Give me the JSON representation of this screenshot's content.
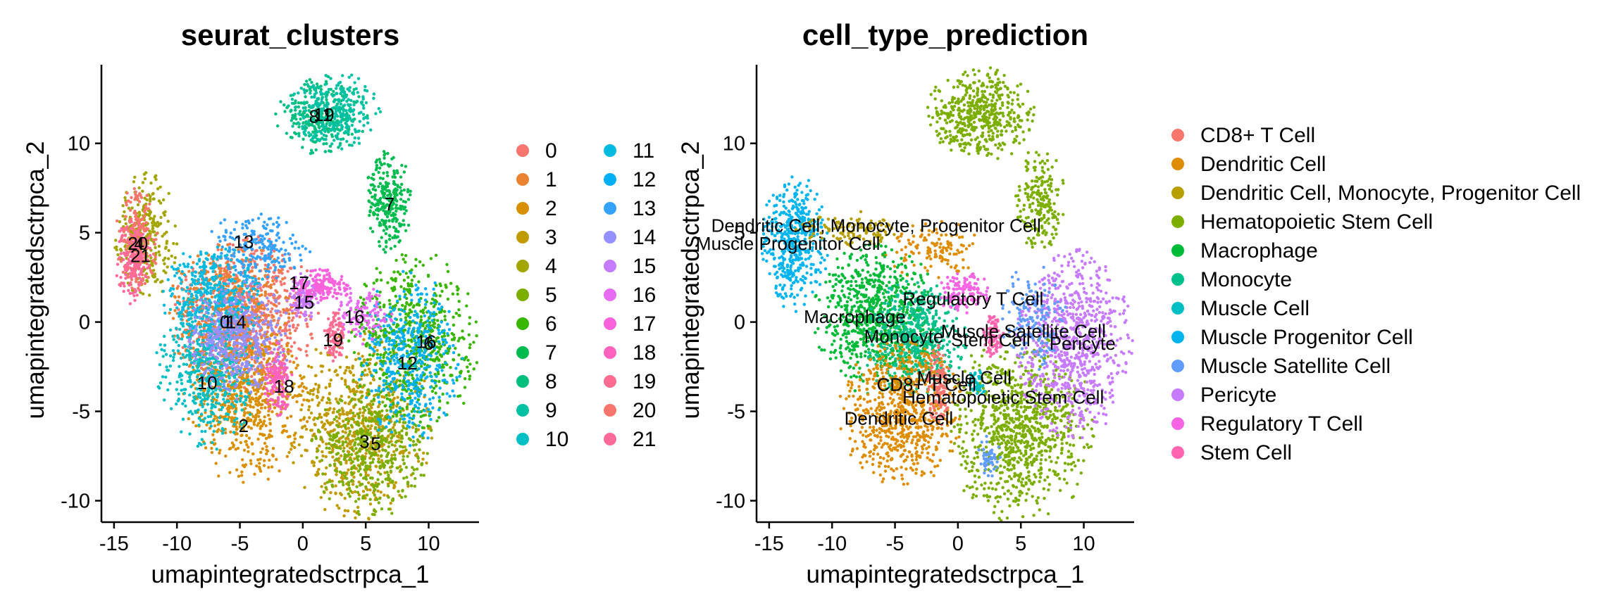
{
  "chart_data": [
    {
      "type": "scatter",
      "title": "seurat_clusters",
      "xlabel": "umapintegratedsctrpca_1",
      "ylabel": "umapintegratedsctrpca_2",
      "xlim": [
        -16,
        14
      ],
      "ylim": [
        -11.2,
        14.4
      ],
      "xticks": [
        -15,
        -10,
        -5,
        0,
        5,
        10
      ],
      "yticks": [
        -10,
        -5,
        0,
        5,
        10
      ],
      "xtick_labels": [
        "-15",
        "-10",
        "-5",
        "0",
        "5",
        "10"
      ],
      "ytick_labels": [
        "-10",
        "-5",
        "0",
        "5",
        "10"
      ],
      "legend_position": "right",
      "legend_columns": 2,
      "series": [
        {
          "name": "0",
          "color": "#F8766D"
        },
        {
          "name": "1",
          "color": "#EA8331"
        },
        {
          "name": "2",
          "color": "#D89000"
        },
        {
          "name": "3",
          "color": "#C09B00"
        },
        {
          "name": "4",
          "color": "#A3A500"
        },
        {
          "name": "5",
          "color": "#7CAE00"
        },
        {
          "name": "6",
          "color": "#39B600"
        },
        {
          "name": "7",
          "color": "#00BB4E"
        },
        {
          "name": "8",
          "color": "#00BF7D"
        },
        {
          "name": "9",
          "color": "#00C1A3"
        },
        {
          "name": "10",
          "color": "#00BFC4"
        },
        {
          "name": "11",
          "color": "#00BAE0"
        },
        {
          "name": "12",
          "color": "#00B0F6"
        },
        {
          "name": "13",
          "color": "#35A2FF"
        },
        {
          "name": "14",
          "color": "#9590FF"
        },
        {
          "name": "15",
          "color": "#C77CFF"
        },
        {
          "name": "16",
          "color": "#E76BF3"
        },
        {
          "name": "17",
          "color": "#FA62DB"
        },
        {
          "name": "18",
          "color": "#FF62BC"
        },
        {
          "name": "19",
          "color": "#FF6C91"
        },
        {
          "name": "20",
          "color": "#F8766D"
        },
        {
          "name": "21",
          "color": "#FF6A98"
        }
      ],
      "regions": [
        {
          "cluster": "0",
          "cx": -4.5,
          "cy": 0.5,
          "rx": 3.5,
          "ry": 2.6,
          "n": 700
        },
        {
          "cluster": "1",
          "cx": -5.8,
          "cy": 0.2,
          "rx": 3.0,
          "ry": 2.8,
          "n": 550
        },
        {
          "cluster": "2",
          "cx": -4.5,
          "cy": -4.5,
          "rx": 3.0,
          "ry": 2.8,
          "n": 600
        },
        {
          "cluster": "3",
          "cx": 4.5,
          "cy": -5.8,
          "rx": 3.5,
          "ry": 3.2,
          "n": 650
        },
        {
          "cluster": "4",
          "cx": -12.5,
          "cy": 4.8,
          "rx": 1.5,
          "ry": 2.2,
          "n": 300
        },
        {
          "cluster": "5",
          "cx": 5.5,
          "cy": -7.0,
          "rx": 3.0,
          "ry": 2.5,
          "n": 450
        },
        {
          "cluster": "6",
          "cx": 9.0,
          "cy": -1.0,
          "rx": 3.2,
          "ry": 3.0,
          "n": 600
        },
        {
          "cluster": "7",
          "cx": 6.8,
          "cy": 6.8,
          "rx": 1.1,
          "ry": 1.8,
          "n": 260
        },
        {
          "cluster": "8",
          "cx": 1.5,
          "cy": 11.6,
          "rx": 2.2,
          "ry": 1.4,
          "n": 280
        },
        {
          "cluster": "9",
          "cx": 2.5,
          "cy": 11.8,
          "rx": 2.2,
          "ry": 1.3,
          "n": 280
        },
        {
          "cluster": "10",
          "cx": -7.5,
          "cy": -2.5,
          "rx": 2.5,
          "ry": 2.8,
          "n": 500
        },
        {
          "cluster": "11",
          "cx": -7.0,
          "cy": 1.5,
          "rx": 2.5,
          "ry": 1.8,
          "n": 380
        },
        {
          "cluster": "12",
          "cx": 8.5,
          "cy": -2.0,
          "rx": 2.5,
          "ry": 3.0,
          "n": 450
        },
        {
          "cluster": "13",
          "cx": -3.5,
          "cy": 4.2,
          "rx": 2.5,
          "ry": 1.2,
          "n": 200
        },
        {
          "cluster": "14",
          "cx": -5.0,
          "cy": -1.0,
          "rx": 2.5,
          "ry": 2.0,
          "n": 450
        },
        {
          "cluster": "15",
          "cx": 0.0,
          "cy": 1.4,
          "rx": 0.8,
          "ry": 0.8,
          "n": 120
        },
        {
          "cluster": "16",
          "cx": 4.8,
          "cy": 0.4,
          "rx": 1.5,
          "ry": 1.0,
          "n": 120
        },
        {
          "cluster": "17",
          "cx": 1.5,
          "cy": 2.0,
          "rx": 1.5,
          "ry": 0.6,
          "n": 150
        },
        {
          "cluster": "18",
          "cx": -2.0,
          "cy": -3.3,
          "rx": 0.7,
          "ry": 1.3,
          "n": 150
        },
        {
          "cluster": "19",
          "cx": 2.5,
          "cy": -0.8,
          "rx": 0.5,
          "ry": 0.9,
          "n": 100
        },
        {
          "cluster": "20",
          "cx": -13.2,
          "cy": 4.5,
          "rx": 1.0,
          "ry": 2.0,
          "n": 200
        },
        {
          "cluster": "21",
          "cx": -13.5,
          "cy": 3.5,
          "rx": 0.9,
          "ry": 1.5,
          "n": 160
        }
      ],
      "labels": [
        {
          "text": "0",
          "x": -6.2,
          "y": 0.0
        },
        {
          "text": "14",
          "x": -5.3,
          "y": 0.0
        },
        {
          "text": "1",
          "x": -6.0,
          "y": 0.0
        },
        {
          "text": "2",
          "x": -4.7,
          "y": -5.8
        },
        {
          "text": "3",
          "x": 4.9,
          "y": -6.7
        },
        {
          "text": "5",
          "x": 5.8,
          "y": -6.8
        },
        {
          "text": "4",
          "x": -13.0,
          "y": 4.4
        },
        {
          "text": "20",
          "x": -13.1,
          "y": 4.4
        },
        {
          "text": "21",
          "x": -12.9,
          "y": 3.7
        },
        {
          "text": "6",
          "x": 10.0,
          "y": -1.2
        },
        {
          "text": "7",
          "x": 6.9,
          "y": 6.6
        },
        {
          "text": "8",
          "x": 0.9,
          "y": 11.5
        },
        {
          "text": "9",
          "x": 2.1,
          "y": 11.6
        },
        {
          "text": "11",
          "x": 1.6,
          "y": 11.6
        },
        {
          "text": "10",
          "x": -7.6,
          "y": -3.4
        },
        {
          "text": "12",
          "x": 8.3,
          "y": -2.3
        },
        {
          "text": "13",
          "x": -4.7,
          "y": 4.5
        },
        {
          "text": "15",
          "x": 0.1,
          "y": 1.1
        },
        {
          "text": "16",
          "x": 4.1,
          "y": 0.3
        },
        {
          "text": "16",
          "x": 9.8,
          "y": -1.1
        },
        {
          "text": "17",
          "x": -0.3,
          "y": 2.2
        },
        {
          "text": "18",
          "x": -1.5,
          "y": -3.6
        },
        {
          "text": "19",
          "x": 2.4,
          "y": -1.0
        }
      ]
    },
    {
      "type": "scatter",
      "title": "cell_type_prediction",
      "xlabel": "umapintegratedsctrpca_1",
      "ylabel": "umapintegratedsctrpca_2",
      "xlim": [
        -16,
        14
      ],
      "ylim": [
        -11.2,
        14.4
      ],
      "xticks": [
        -15,
        -10,
        -5,
        0,
        5,
        10
      ],
      "yticks": [
        -10,
        -5,
        0,
        5,
        10
      ],
      "xtick_labels": [
        "-15",
        "-10",
        "-5",
        "0",
        "5",
        "10"
      ],
      "ytick_labels": [
        "-10",
        "-5",
        "0",
        "5",
        "10"
      ],
      "legend_position": "right",
      "legend_columns": 1,
      "series": [
        {
          "name": "CD8+ T Cell",
          "color": "#F8766D"
        },
        {
          "name": "Dendritic Cell",
          "color": "#DE8C00"
        },
        {
          "name": "Dendritic Cell, Monocyte, Progenitor Cell",
          "color": "#B79F00"
        },
        {
          "name": "Hematopoietic Stem Cell",
          "color": "#7CAE00"
        },
        {
          "name": "Macrophage",
          "color": "#00BA38"
        },
        {
          "name": "Monocyte",
          "color": "#00C08B"
        },
        {
          "name": "Muscle Cell",
          "color": "#00BFC4"
        },
        {
          "name": "Muscle Progenitor Cell",
          "color": "#00B4F0"
        },
        {
          "name": "Muscle Satellite Cell",
          "color": "#619CFF"
        },
        {
          "name": "Pericyte",
          "color": "#C77CFF"
        },
        {
          "name": "Regulatory T Cell",
          "color": "#F564E3"
        },
        {
          "name": "Stem Cell",
          "color": "#FF64B0"
        }
      ],
      "regions": [
        {
          "cluster": "Hematopoietic Stem Cell",
          "cx": 1.8,
          "cy": 11.6,
          "rx": 2.6,
          "ry": 1.6,
          "n": 500
        },
        {
          "cluster": "Hematopoietic Stem Cell",
          "cx": 6.5,
          "cy": 6.8,
          "rx": 1.2,
          "ry": 1.8,
          "n": 200
        },
        {
          "cluster": "Hematopoietic Stem Cell",
          "cx": 5.0,
          "cy": -6.0,
          "rx": 3.5,
          "ry": 3.3,
          "n": 900
        },
        {
          "cluster": "Muscle Progenitor Cell",
          "cx": -13.0,
          "cy": 4.5,
          "rx": 1.6,
          "ry": 2.4,
          "n": 450
        },
        {
          "cluster": "Dendritic Cell, Monocyte, Progenitor Cell",
          "cx": -8.5,
          "cy": 5.2,
          "rx": 2.6,
          "ry": 0.6,
          "n": 120
        },
        {
          "cluster": "Dendritic Cell",
          "cx": -2.0,
          "cy": 4.0,
          "rx": 2.5,
          "ry": 1.0,
          "n": 120
        },
        {
          "cluster": "Macrophage",
          "cx": -6.5,
          "cy": 0.2,
          "rx": 3.0,
          "ry": 2.6,
          "n": 800
        },
        {
          "cluster": "Monocyte",
          "cx": -3.5,
          "cy": -1.0,
          "rx": 2.5,
          "ry": 2.0,
          "n": 500
        },
        {
          "cluster": "Dendritic Cell",
          "cx": -4.5,
          "cy": -5.0,
          "rx": 3.0,
          "ry": 2.5,
          "n": 700
        },
        {
          "cluster": "CD8+ T Cell",
          "cx": -1.5,
          "cy": -3.5,
          "rx": 0.6,
          "ry": 1.5,
          "n": 120
        },
        {
          "cluster": "Regulatory T Cell",
          "cx": 0.5,
          "cy": 1.6,
          "rx": 1.3,
          "ry": 0.7,
          "n": 130
        },
        {
          "cluster": "Stem Cell",
          "cx": 2.8,
          "cy": -0.8,
          "rx": 0.5,
          "ry": 0.8,
          "n": 90
        },
        {
          "cluster": "Pericyte",
          "cx": 9.2,
          "cy": -1.2,
          "rx": 2.8,
          "ry": 3.2,
          "n": 800
        },
        {
          "cluster": "Muscle Satellite Cell",
          "cx": 6.0,
          "cy": 0.2,
          "rx": 1.6,
          "ry": 1.8,
          "n": 160
        },
        {
          "cluster": "Muscle Satellite Cell",
          "cx": 2.5,
          "cy": -7.5,
          "rx": 0.6,
          "ry": 0.7,
          "n": 50
        },
        {
          "cluster": "Muscle Cell",
          "cx": 1.5,
          "cy": -3.5,
          "rx": 0.4,
          "ry": 0.6,
          "n": 40
        }
      ],
      "labels": [
        {
          "text": "Dendritic Cell, Monocyte, Progenitor Cell",
          "x": -6.5,
          "y": 5.4
        },
        {
          "text": "Muscle Progenitor Cell",
          "x": -13.5,
          "y": 4.4
        },
        {
          "text": "Regulatory T Cell",
          "x": 1.2,
          "y": 1.3
        },
        {
          "text": "Macrophage",
          "x": -8.2,
          "y": 0.3
        },
        {
          "text": "Muscle Satellite Cell",
          "x": 5.2,
          "y": -0.5
        },
        {
          "text": "Monocyte",
          "x": -4.3,
          "y": -0.8
        },
        {
          "text": "Stem Cell",
          "x": 2.6,
          "y": -1.0
        },
        {
          "text": "Pericyte",
          "x": 9.9,
          "y": -1.2
        },
        {
          "text": "Muscle Cell",
          "x": 0.5,
          "y": -3.1
        },
        {
          "text": "CD8+ T Cell",
          "x": -2.5,
          "y": -3.5
        },
        {
          "text": "Hematopoietic Stem Cell",
          "x": 3.6,
          "y": -4.2
        },
        {
          "text": "Dendritic Cell",
          "x": -4.7,
          "y": -5.4
        }
      ]
    }
  ]
}
